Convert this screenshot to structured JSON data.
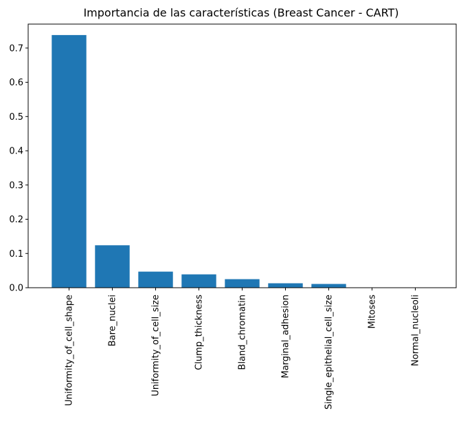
{
  "chart_data": {
    "type": "bar",
    "title": "Importancia de las características (Breast Cancer - CART)",
    "xlabel": "",
    "ylabel": "",
    "categories": [
      "Uniformity_of_cell_shape",
      "Bare_nuclei",
      "Uniformity_of_cell_size",
      "Clump_thickness",
      "Bland_chromatin",
      "Marginal_adhesion",
      "Single_epithelial_cell_size",
      "Mitoses",
      "Normal_nucleoli"
    ],
    "values": [
      0.738,
      0.124,
      0.047,
      0.039,
      0.025,
      0.013,
      0.011,
      0.0,
      0.0
    ],
    "ylim": [
      0,
      0.77
    ],
    "yticks": [
      0.0,
      0.1,
      0.2,
      0.3,
      0.4,
      0.5,
      0.6,
      0.7
    ],
    "ytick_labels": [
      "0.0",
      "0.1",
      "0.2",
      "0.3",
      "0.4",
      "0.5",
      "0.6",
      "0.7"
    ],
    "grid": false,
    "bar_color": "#1f77b4"
  }
}
